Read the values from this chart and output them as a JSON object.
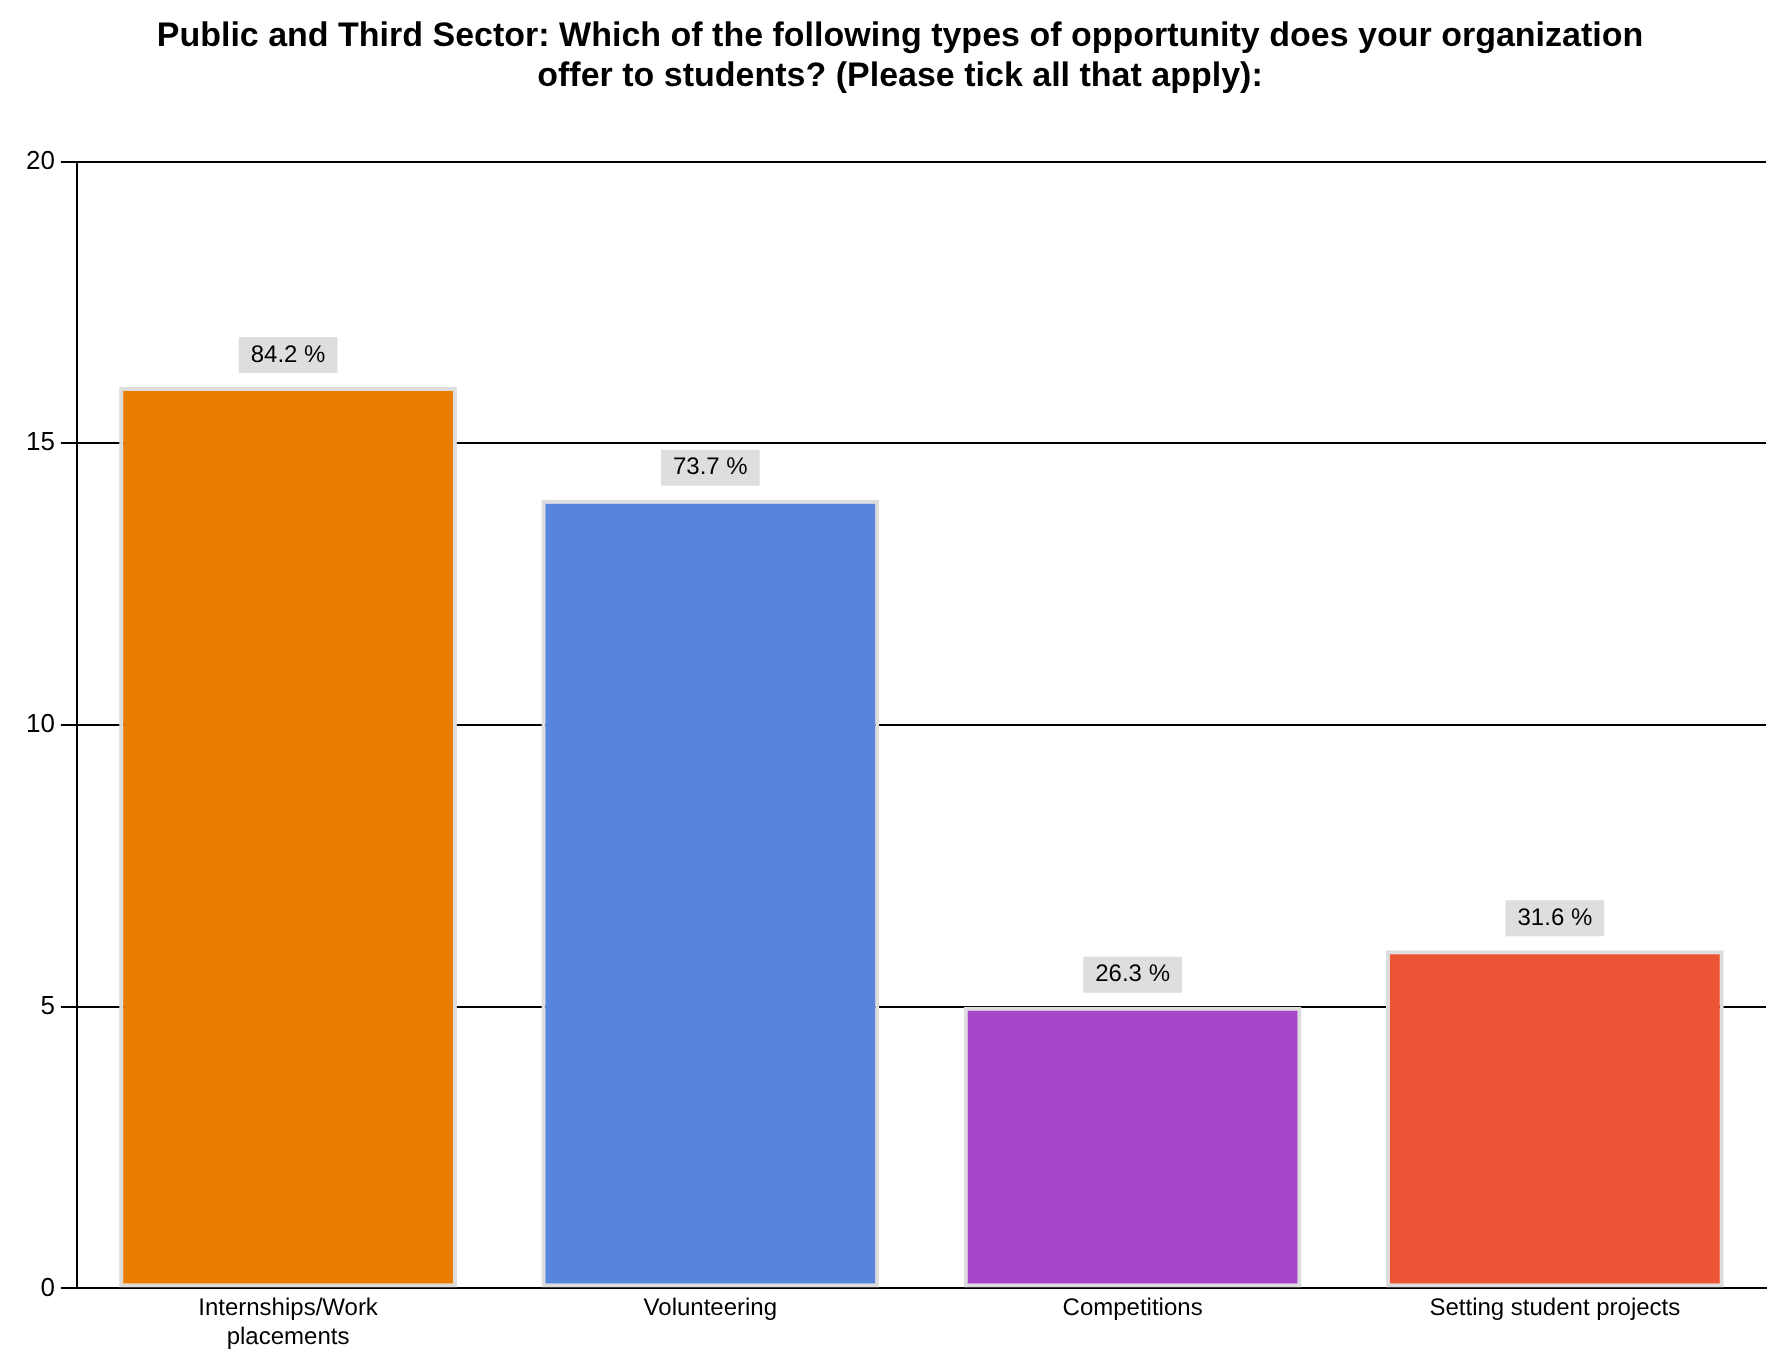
{
  "chart_data": {
    "type": "bar",
    "title": "Public and Third Sector: Which of the following types of opportunity does your organization offer to students? (Please tick all that apply):",
    "categories": [
      "Internships/Work placements",
      "Volunteering",
      "Competitions",
      "Setting student projects"
    ],
    "values": [
      16,
      14,
      5,
      6
    ],
    "colors": [
      "#e97d00",
      "#5785dc",
      "#a845c8",
      "#eb5535"
    ],
    "annotations": [
      {
        "text": "84.2 %",
        "x": "Internships/Work placements",
        "y": 16
      },
      {
        "text": "73.7 %",
        "x": "Volunteering",
        "y": 14
      },
      {
        "text": "26.3 %",
        "x": "Competitions",
        "y": 5
      },
      {
        "text": "31.6 %",
        "x": "Setting student projects",
        "y": 6
      }
    ],
    "ylim": [
      0,
      20
    ],
    "yticks": [
      0,
      5,
      10,
      15,
      20
    ],
    "grid": "y",
    "legend": false
  }
}
